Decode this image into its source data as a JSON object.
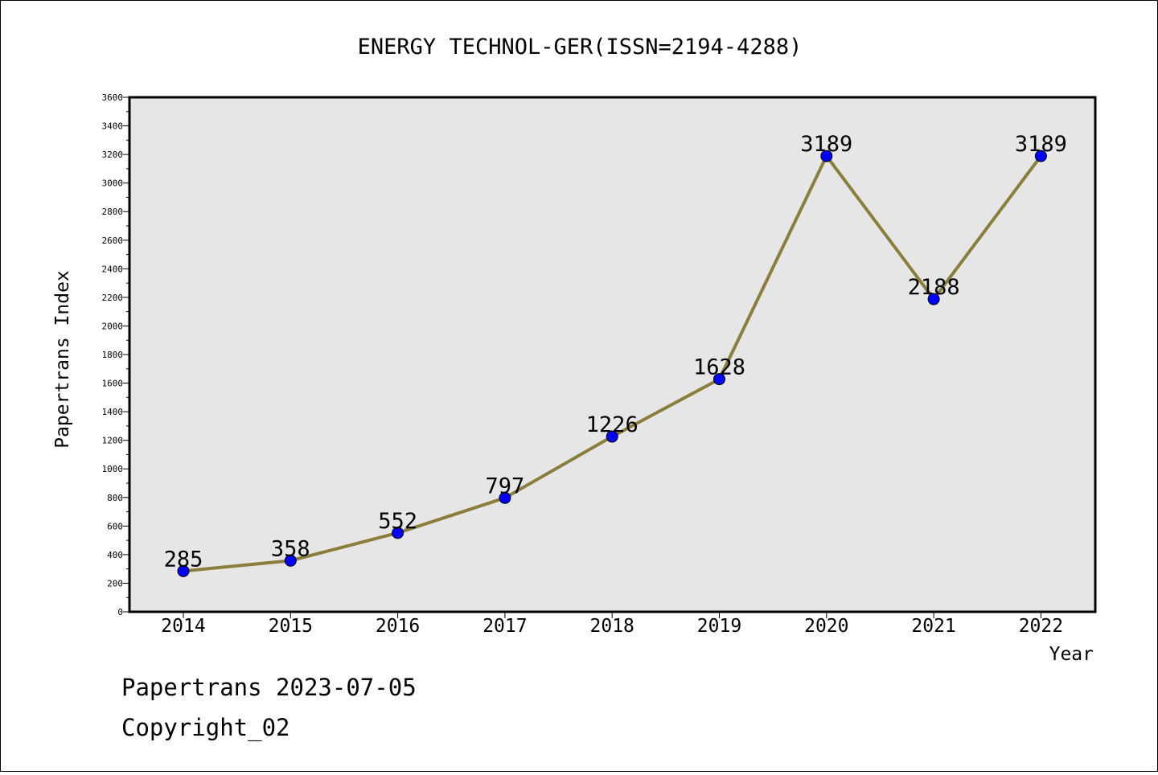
{
  "chart_data": {
    "type": "line",
    "title": "ENERGY TECHNOL-GER(ISSN=2194-4288)",
    "xlabel": "Year",
    "ylabel": "Papertrans Index",
    "categories": [
      "2014",
      "2015",
      "2016",
      "2017",
      "2018",
      "2019",
      "2020",
      "2021",
      "2022"
    ],
    "series": [
      {
        "values": [
          285,
          358,
          552,
          797,
          1226,
          1628,
          3189,
          2188,
          3189
        ]
      }
    ],
    "ylim": [
      0,
      3600
    ],
    "yticks": [
      0,
      200,
      400,
      600,
      800,
      1000,
      1200,
      1400,
      1600,
      1800,
      2000,
      2200,
      2400,
      2600,
      2800,
      3000,
      3200,
      3400,
      3600
    ],
    "grid": false,
    "line_color": "#8b7d3a",
    "marker_color": "#0000ff",
    "plot_background": "#e6e6e6"
  },
  "footer": {
    "stamp": "Papertrans 2023-07-05",
    "copyright": "Copyright_02"
  }
}
